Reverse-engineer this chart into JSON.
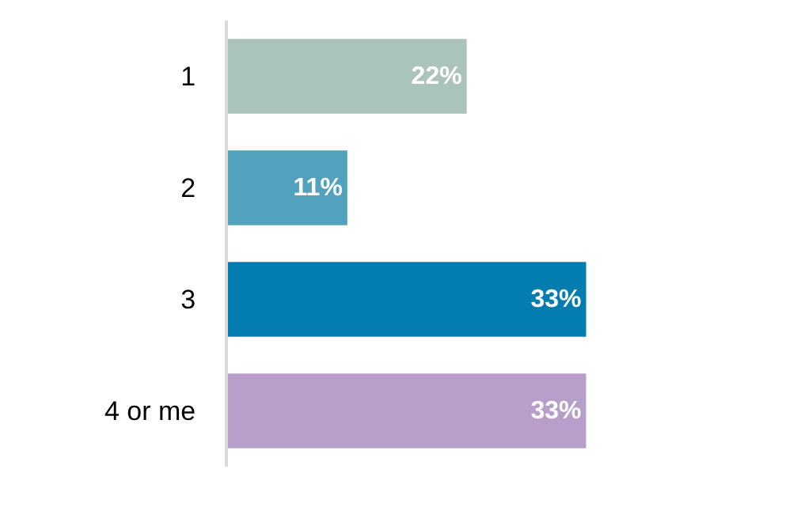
{
  "chart_data": {
    "type": "bar",
    "orientation": "horizontal",
    "categories": [
      "1",
      "2",
      "3",
      "4 or me"
    ],
    "values": [
      22,
      11,
      33,
      33
    ],
    "colors": [
      "#aac4bb",
      "#52a1bd",
      "#037caf",
      "#b89fca"
    ],
    "value_labels": [
      "22%",
      "11%",
      "33%",
      "33%"
    ]
  }
}
